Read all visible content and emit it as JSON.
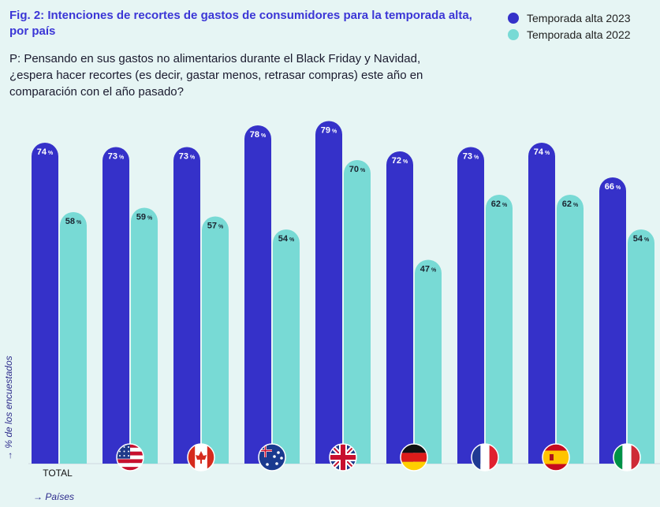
{
  "chart_data": {
    "type": "bar",
    "title": "Fig. 2: Intenciones de recortes de gastos de consumidores para la temporada alta, por país",
    "subtitle": "P: Pensando en sus gastos no alimentarios durante el Black Friday y Navidad, ¿espera hacer recortes (es decir, gastar menos, retrasar compras) este año en comparación con el año pasado?",
    "ylabel": "→ % de los encuestados",
    "xlabel": "→ Países",
    "categories": [
      "TOTAL",
      "US",
      "CA",
      "AU",
      "GB",
      "DE",
      "FR",
      "ES",
      "IT"
    ],
    "category_icons": [
      "",
      "us-flag-icon",
      "canada-flag-icon",
      "australia-flag-icon",
      "uk-flag-icon",
      "germany-flag-icon",
      "france-flag-icon",
      "spain-flag-icon",
      "italy-flag-icon"
    ],
    "series": [
      {
        "name": "Temporada alta 2023",
        "color": "#3531c9",
        "values": [
          74,
          73,
          73,
          78,
          79,
          72,
          73,
          74,
          66
        ]
      },
      {
        "name": "Temporada alta 2022",
        "color": "#78dad5",
        "values": [
          58,
          59,
          57,
          54,
          70,
          47,
          62,
          62,
          54
        ]
      }
    ],
    "value_suffix": "%",
    "ylim": [
      0,
      100
    ],
    "grid": false,
    "legend": "top-right"
  }
}
